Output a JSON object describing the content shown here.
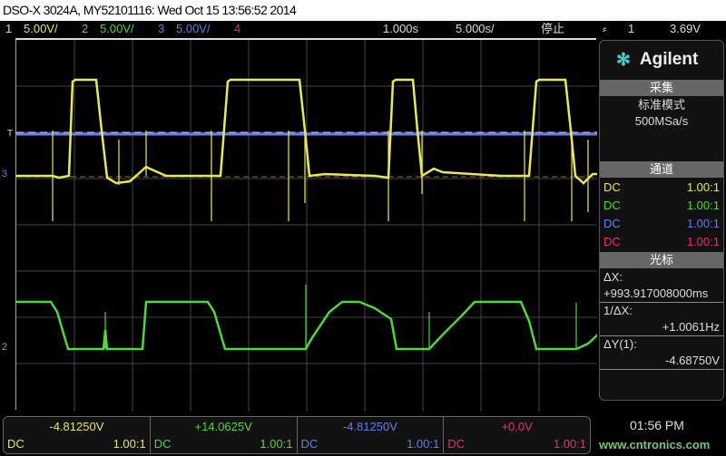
{
  "title": "DSO-X 3024A, MY52101116: Wed Oct 15 13:56:52 2014",
  "status": {
    "ch1_num": "1",
    "ch1_scale": "5.00V/",
    "ch2_num": "2",
    "ch2_scale": "5.00V/",
    "ch3_num": "3",
    "ch3_scale": "5.00V/",
    "ch4_num": "4",
    "time_delay": "1.000s",
    "time_scale": "5.000s/",
    "run_state": "停止",
    "trigger_icon": "rising-edge-icon",
    "trigger_source": "1",
    "trigger_level": "3.69V"
  },
  "markers": {
    "trigger": "T",
    "ch3": "3",
    "ch2": "2",
    "ch1": "1"
  },
  "side": {
    "brand": "Agilent",
    "acq_header": "采集",
    "acq_mode": "标准模式",
    "acq_rate": "500MSa/s",
    "chan_header": "通道",
    "channels": [
      {
        "coupling": "DC",
        "probe": "1.00:1",
        "color": "#e8e85a"
      },
      {
        "coupling": "DC",
        "probe": "1.00:1",
        "color": "#4ed83a"
      },
      {
        "coupling": "DC",
        "probe": "1.00:1",
        "color": "#6a7ae8"
      },
      {
        "coupling": "DC",
        "probe": "1.00:1",
        "color": "#e8306a"
      }
    ],
    "cursor_header": "光标",
    "dx_label": "ΔX:",
    "dx_value": "+993.917008000ms",
    "inv_dx_label": "1/ΔX:",
    "inv_dx_value": "+1.0061Hz",
    "dy_label": "ΔY(1):",
    "dy_value": "-4.68750V"
  },
  "bottom": [
    {
      "value": "-4.81250V",
      "coupling": "DC",
      "probe": "1.00:1",
      "color": "#e8e85a"
    },
    {
      "value": "+14.0625V",
      "coupling": "DC",
      "probe": "1.00:1",
      "color": "#4ed83a"
    },
    {
      "value": "-4.81250V",
      "coupling": "DC",
      "probe": "1.00:1",
      "color": "#6a7ae8"
    },
    {
      "value": "+0.0V",
      "coupling": "DC",
      "probe": "1.00:1",
      "color": "#e8306a"
    }
  ],
  "clock": "01:56 PM",
  "watermark": "www.cntronics.com"
}
